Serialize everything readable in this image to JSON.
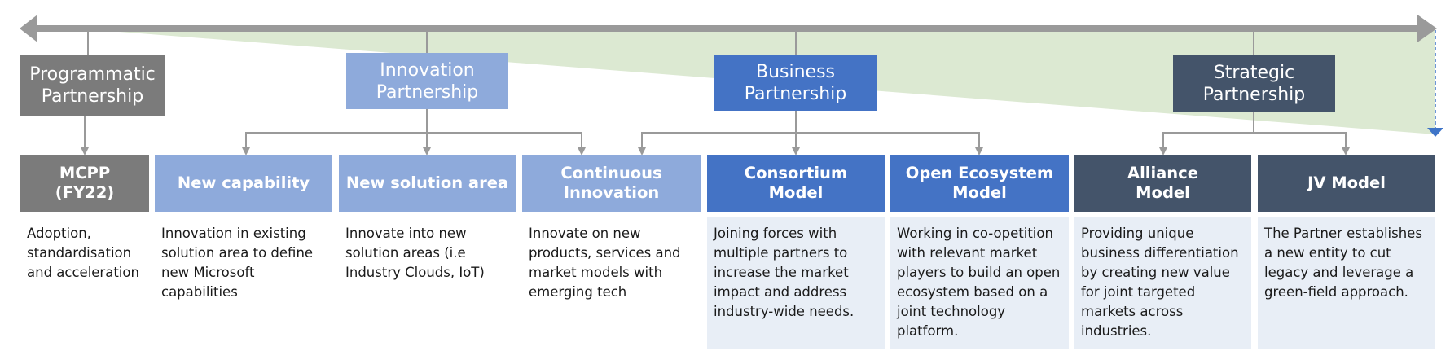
{
  "colors": {
    "arrow": "#9a9a9a",
    "connector": "#9a9a9a",
    "wedge": "#dce9d2",
    "dashed_arrow": "#3e74c8",
    "programmatic": "#7b7b7b",
    "innovation": "#8eaadb",
    "business": "#4473c5",
    "strategic": "#44546a",
    "desc_shade": "#e8eef6"
  },
  "tiers": [
    {
      "label": "Programmatic Partnership",
      "lines": [
        "Programmatic",
        "Partnership"
      ]
    },
    {
      "label": "Innovation Partnership",
      "lines": [
        "Innovation",
        "Partnership"
      ]
    },
    {
      "label": "Business Partnership",
      "lines": [
        "Business",
        "Partnership"
      ]
    },
    {
      "label": "Strategic Partnership",
      "lines": [
        "Strategic",
        "Partnership"
      ]
    }
  ],
  "models": [
    {
      "title_lines": [
        "MCPP",
        "(FY22)"
      ],
      "description_lines": [
        "Adoption,",
        "standardisation",
        "and acceleration"
      ]
    },
    {
      "title_lines": [
        "New capability"
      ],
      "description_lines": [
        "Innovation in existing",
        "solution area to define",
        "new Microsoft",
        "capabilities"
      ]
    },
    {
      "title_lines": [
        "New solution area"
      ],
      "description_lines": [
        "Innovate into new",
        "solution areas (i.e",
        "Industry Clouds, IoT)"
      ]
    },
    {
      "title_lines": [
        "Continuous",
        "Innovation"
      ],
      "description_lines": [
        "Innovate on new",
        "products, services and",
        "market models with",
        "emerging tech"
      ]
    },
    {
      "title_lines": [
        "Consortium",
        "Model"
      ],
      "description_lines": [
        "Joining forces with",
        "multiple partners to",
        "increase the market",
        "impact and address",
        "industry-wide needs."
      ]
    },
    {
      "title_lines": [
        "Open Ecosystem",
        "Model"
      ],
      "description_lines": [
        "Working in co-opetition",
        "with relevant market",
        "players to build an open",
        "ecosystem based on a",
        "joint technology",
        "platform."
      ]
    },
    {
      "title_lines": [
        "Alliance",
        "Model"
      ],
      "description_lines": [
        "Providing unique",
        "business differentiation",
        "by creating new value",
        "for joint targeted",
        "markets across",
        "industries."
      ]
    },
    {
      "title_lines": [
        "JV Model"
      ],
      "description_lines": [
        "The Partner establishes",
        "a new entity to cut",
        "legacy and leverage a",
        "green-field approach."
      ]
    }
  ]
}
